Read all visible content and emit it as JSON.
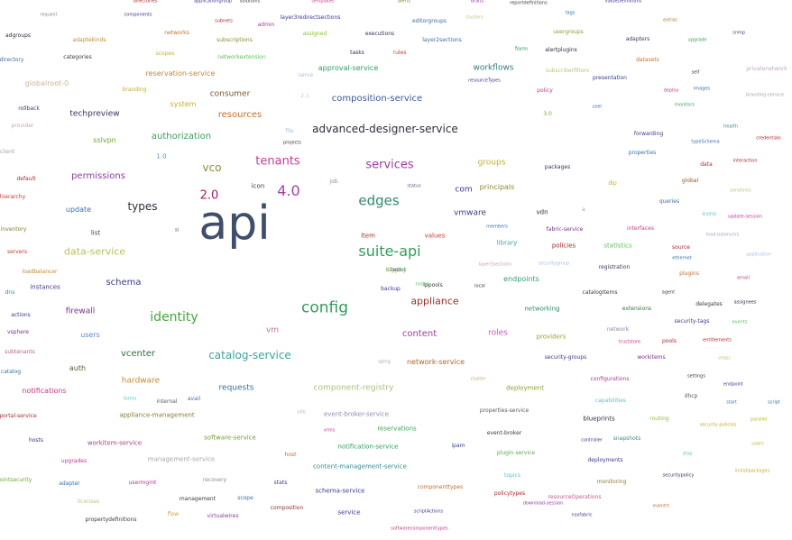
{
  "words": [
    {
      "text": "api",
      "color": "#3f4e6b"
    },
    {
      "text": "suite-api",
      "color": "#2e9e5b"
    },
    {
      "text": "config",
      "color": "#2e9e5b"
    },
    {
      "text": "edges",
      "color": "#2e8a6e"
    },
    {
      "text": "identity",
      "color": "#46a63f"
    },
    {
      "text": "services",
      "color": "#9b3fa0"
    },
    {
      "text": "tenants",
      "color": "#c2409a"
    },
    {
      "text": "4.0",
      "color": "#a63fa0"
    },
    {
      "text": "2.0",
      "color": "#a5205e"
    },
    {
      "text": "advanced-designer-service",
      "color": "#2e2e3e"
    },
    {
      "text": "catalog-service",
      "color": "#3aa6a0"
    },
    {
      "text": "vco",
      "color": "#8c8c2e"
    },
    {
      "text": "types",
      "color": "#2e2e3e"
    },
    {
      "text": "appliance",
      "color": "#a52a2a"
    },
    {
      "text": "composition-service",
      "color": "#3a5a9b"
    },
    {
      "text": "data-service",
      "color": "#b8c25a"
    },
    {
      "text": "authorization",
      "color": "#3a9e5b"
    },
    {
      "text": "resources",
      "color": "#c2702e"
    },
    {
      "text": "permissions",
      "color": "#8a3fa0"
    },
    {
      "text": "schema",
      "color": "#3a3a8a"
    },
    {
      "text": "vcenter",
      "color": "#2e6e3e"
    },
    {
      "text": "content",
      "color": "#9b3fa0"
    },
    {
      "text": "firewall",
      "color": "#7a2e8a"
    },
    {
      "text": "hardware",
      "color": "#c28a2e"
    },
    {
      "text": "requests",
      "color": "#3a6ea6"
    },
    {
      "text": "component-registry",
      "color": "#a6c27a"
    },
    {
      "text": "network-service",
      "color": "#c25a2e"
    },
    {
      "text": "roles",
      "color": "#c25ac2"
    },
    {
      "text": "vmware",
      "color": "#3a3a8a"
    },
    {
      "text": "com",
      "color": "#3a3a8a"
    },
    {
      "text": "groups",
      "color": "#c2b02e"
    },
    {
      "text": "principals",
      "color": "#8a8a2e"
    },
    {
      "text": "workflows",
      "color": "#2e7a7a"
    },
    {
      "text": "techpreview",
      "color": "#3a2e5a"
    },
    {
      "text": "consumer",
      "color": "#7a5a2e"
    },
    {
      "text": "reservation-service",
      "color": "#c28a2e"
    },
    {
      "text": "approval-service",
      "color": "#2e9e5b"
    },
    {
      "text": "sslvpn",
      "color": "#6ea62e"
    },
    {
      "text": "update",
      "color": "#3a6ea6"
    },
    {
      "text": "users",
      "color": "#5a8ac2"
    },
    {
      "text": "auth",
      "color": "#5a5a2e"
    },
    {
      "text": "vm",
      "color": "#c27a7a"
    },
    {
      "text": "endpoints",
      "color": "#2e9e6e"
    },
    {
      "text": "library",
      "color": "#3aa6a0"
    },
    {
      "text": "item",
      "color": "#a52a2a"
    },
    {
      "text": "values",
      "color": "#c23a2e"
    },
    {
      "text": "vdn",
      "color": "#2e2e3e"
    },
    {
      "text": "instances",
      "color": "#3a3a8a"
    },
    {
      "text": "appliance-management",
      "color": "#8a7a2e"
    },
    {
      "text": "event-broker-service",
      "color": "#8a8aa6"
    },
    {
      "text": "reservations",
      "color": "#3a9e5b"
    },
    {
      "text": "notification-service",
      "color": "#2e9e5b"
    },
    {
      "text": "content-management-service",
      "color": "#3a8a8a"
    },
    {
      "text": "software-service",
      "color": "#6e9e2e"
    },
    {
      "text": "management-service",
      "color": "#a6a6a6"
    },
    {
      "text": "workitem-service",
      "color": "#a63f8a"
    },
    {
      "text": "notifications",
      "color": "#c23a8a"
    },
    {
      "text": "schema-service",
      "color": "#3a3a8a"
    },
    {
      "text": "service",
      "color": "#3a3a8a"
    },
    {
      "text": "deployment",
      "color": "#8a9e2e"
    },
    {
      "text": "providers",
      "color": "#9e9e2e"
    },
    {
      "text": "networking",
      "color": "#2e8a6e"
    },
    {
      "text": "security-groups",
      "color": "#3a3a8a"
    },
    {
      "text": "policies",
      "color": "#a52a2a"
    },
    {
      "text": "statistics",
      "color": "#5ac25a"
    },
    {
      "text": "plugin-service",
      "color": "#5aa65a"
    },
    {
      "text": "properties-service",
      "color": "#5a5a5a"
    },
    {
      "text": "blueprints",
      "color": "#2e2e3e"
    },
    {
      "text": "snapshots",
      "color": "#3a8a8a"
    },
    {
      "text": "deployments",
      "color": "#3a3a8a"
    },
    {
      "text": "monitoring",
      "color": "#8a7a2e"
    },
    {
      "text": "configurations",
      "color": "#a63f8a"
    },
    {
      "text": "capabilities",
      "color": "#5ac2c2"
    },
    {
      "text": "dhcp",
      "color": "#5a5a5a"
    },
    {
      "text": "routing",
      "color": "#8ac22e"
    },
    {
      "text": "workitems",
      "color": "#7a2e8a"
    },
    {
      "text": "pools",
      "color": "#a52a2a"
    },
    {
      "text": "extensions",
      "color": "#3a6e3a"
    },
    {
      "text": "catalogItems",
      "color": "#3a3a3a"
    },
    {
      "text": "registration",
      "color": "#3a3a5a"
    },
    {
      "text": "fabric-service",
      "color": "#7a2e8a"
    },
    {
      "text": "interfaces",
      "color": "#c23a8a"
    },
    {
      "text": "plugins",
      "color": "#c2702e"
    },
    {
      "text": "source",
      "color": "#a52a2a"
    },
    {
      "text": "queries",
      "color": "#3a6ea6"
    },
    {
      "text": "icons",
      "color": "#5ac2c2"
    },
    {
      "text": "global",
      "color": "#8a5a2e"
    },
    {
      "text": "data",
      "color": "#a52a2a"
    },
    {
      "text": "packages",
      "color": "#3a2e5a"
    },
    {
      "text": "properties",
      "color": "#3a6ea6"
    },
    {
      "text": "forwarding",
      "color": "#3a3a8a"
    },
    {
      "text": "policy",
      "color": "#c23a8a"
    },
    {
      "text": "presentation",
      "color": "#3a3a8a"
    },
    {
      "text": "datasets",
      "color": "#c2702e"
    },
    {
      "text": "adapters",
      "color": "#3a3a5a"
    },
    {
      "text": "alertplugins",
      "color": "#2e2e3e"
    },
    {
      "text": "usergroups",
      "color": "#8a9e2e"
    },
    {
      "text": "form",
      "color": "#2e9e5b"
    },
    {
      "text": "layer2sections",
      "color": "#3a6ea6"
    },
    {
      "text": "executions",
      "color": "#2e2e5a"
    },
    {
      "text": "tasks",
      "color": "#2e2e5a"
    },
    {
      "text": "rules",
      "color": "#c23a2e"
    },
    {
      "text": "subscriptions",
      "color": "#8a8a2e"
    },
    {
      "text": "networkextension",
      "color": "#5ac25a"
    },
    {
      "text": "networks",
      "color": "#c2702e"
    },
    {
      "text": "assigned",
      "color": "#8ac22e"
    },
    {
      "text": "admin",
      "color": "#a63f8a"
    },
    {
      "text": "scopes",
      "color": "#c2b02e"
    },
    {
      "text": "adaptekinds",
      "color": "#c28a2e"
    },
    {
      "text": "categories",
      "color": "#3a3a3a"
    },
    {
      "text": "adgroups",
      "color": "#2e2e3e"
    },
    {
      "text": "directory",
      "color": "#3a6ea6"
    },
    {
      "text": "globalroot-0",
      "color": "#d2b48c"
    },
    {
      "text": "rollback",
      "color": "#3a3a8a"
    },
    {
      "text": "provider",
      "color": "#c2a6c2"
    },
    {
      "text": "client",
      "color": "#a6a6a6"
    },
    {
      "text": "default",
      "color": "#a52a2a"
    },
    {
      "text": "hierarchy",
      "color": "#c23a2e"
    },
    {
      "text": "inventory",
      "color": "#8a7a2e"
    },
    {
      "text": "servers",
      "color": "#c23a2e"
    },
    {
      "text": "loadbalancer",
      "color": "#c28a2e"
    },
    {
      "text": "dns",
      "color": "#3a8aa6"
    },
    {
      "text": "actions",
      "color": "#3a3a8a"
    },
    {
      "text": "vsphere",
      "color": "#7a2e8a"
    },
    {
      "text": "subtenants",
      "color": "#c25a8a"
    },
    {
      "text": "catalog",
      "color": "#3a6ea6"
    },
    {
      "text": "portal-service",
      "color": "#a52a2a"
    },
    {
      "text": "hosts",
      "color": "#3a3a8a"
    },
    {
      "text": "upgrades",
      "color": "#c23a8a"
    },
    {
      "text": "endpointsecurity",
      "color": "#6ea62e"
    },
    {
      "text": "adapter",
      "color": "#3a6ea6"
    },
    {
      "text": "usermgmt",
      "color": "#a63f8a"
    },
    {
      "text": "recovery",
      "color": "#8a8a8a"
    },
    {
      "text": "management",
      "color": "#3a3a3a"
    },
    {
      "text": "scope",
      "color": "#3a6ea6"
    },
    {
      "text": "stats",
      "color": "#3a3a8a"
    },
    {
      "text": "licenses",
      "color": "#c2c27a"
    },
    {
      "text": "propertydefinitions",
      "color": "#3a3a3a"
    },
    {
      "text": "flow",
      "color": "#c2a62e"
    },
    {
      "text": "virtualwires",
      "color": "#8a3fa0"
    },
    {
      "text": "composition",
      "color": "#8a2e3a"
    },
    {
      "text": "scriptActions",
      "color": "#3a3a8a"
    },
    {
      "text": "softwarecomponenttypes",
      "color": "#c23a8a"
    },
    {
      "text": "componenttypes",
      "color": "#c2702e"
    },
    {
      "text": "policytypes",
      "color": "#a52a2a"
    },
    {
      "text": "topics",
      "color": "#5ac2c2"
    },
    {
      "text": "event-broker",
      "color": "#3a3a3a"
    },
    {
      "text": "resourceOperations",
      "color": "#c25a8a"
    },
    {
      "text": "download-session",
      "color": "#8a3fa0"
    },
    {
      "text": "nsxfabric",
      "color": "#3a3a8a"
    },
    {
      "text": "eventrt",
      "color": "#c2702e"
    },
    {
      "text": "securitypolicy",
      "color": "#3a2e5a"
    },
    {
      "text": "installpackages",
      "color": "#c2b02e"
    },
    {
      "text": "stop",
      "color": "#5ac2c2"
    },
    {
      "text": "security-policies",
      "color": "#c2b02e"
    },
    {
      "text": "parallel",
      "color": "#c2b02e"
    },
    {
      "text": "script",
      "color": "#3a6ea6"
    },
    {
      "text": "start",
      "color": "#3a6ea6"
    },
    {
      "text": "endpoint",
      "color": "#3a3a8a"
    },
    {
      "text": "settings",
      "color": "#3a3a3a"
    },
    {
      "text": "vrops",
      "color": "#c2c27a"
    },
    {
      "text": "entitlements",
      "color": "#a52a2a"
    },
    {
      "text": "security-tags",
      "color": "#3a3a8a"
    },
    {
      "text": "events",
      "color": "#5ac25a"
    },
    {
      "text": "assignees",
      "color": "#2e2e3e"
    },
    {
      "text": "delegates",
      "color": "#3a3a3a"
    },
    {
      "text": "agent",
      "color": "#3a3a3a"
    },
    {
      "text": "network",
      "color": "#8a8aa6"
    },
    {
      "text": "truststore",
      "color": "#c23a8a"
    },
    {
      "text": "email",
      "color": "#c23a8a"
    },
    {
      "text": "application",
      "color": "#a6c2e2"
    },
    {
      "text": "ethernet",
      "color": "#3a6ea6"
    },
    {
      "text": "load-balancers",
      "color": "#a6a6c2"
    },
    {
      "text": "update-session",
      "color": "#c23a8a"
    },
    {
      "text": "sendlines",
      "color": "#c2c27a"
    },
    {
      "text": "interaction",
      "color": "#a52a2a"
    },
    {
      "text": "typeSchema",
      "color": "#3a6ea6"
    },
    {
      "text": "credentials",
      "color": "#a52a2a"
    },
    {
      "text": "health",
      "color": "#3a8a8a"
    },
    {
      "text": "monitors",
      "color": "#3a9e5b"
    },
    {
      "text": "branding-service",
      "color": "#a6a6a6"
    },
    {
      "text": "images",
      "color": "#3a6ea6"
    },
    {
      "text": "deploy",
      "color": "#c23a8a"
    },
    {
      "text": "self",
      "color": "#3a3a3a"
    },
    {
      "text": "privatenetwork",
      "color": "#c2a6c2"
    },
    {
      "text": "upgrade",
      "color": "#3a9e5b"
    },
    {
      "text": "snmp",
      "color": "#3a3a8a"
    },
    {
      "text": "extras",
      "color": "#c2702e"
    },
    {
      "text": "tags",
      "color": "#3a6ea6"
    },
    {
      "text": "valueDefinitions",
      "color": "#3a3a8a"
    },
    {
      "text": "reportdefinitions",
      "color": "#3a3a3a"
    },
    {
      "text": "drafts",
      "color": "#8a3fa0"
    },
    {
      "text": "alerts",
      "color": "#8a7a2e"
    },
    {
      "text": "templates",
      "color": "#c23a8a"
    },
    {
      "text": "solutions",
      "color": "#3a3a3a"
    },
    {
      "text": "applicationgroup",
      "color": "#3a3a8a"
    },
    {
      "text": "directories",
      "color": "#a52a2a"
    },
    {
      "text": "components",
      "color": "#3a3a8a"
    },
    {
      "text": "request",
      "color": "#8a8aa6"
    },
    {
      "text": "subnets",
      "color": "#a52a2a"
    },
    {
      "text": "layer3redirectsections",
      "color": "#3a3a8a"
    },
    {
      "text": "editorgroups",
      "color": "#3a6ea6"
    },
    {
      "text": "clusters",
      "color": "#c2c27a"
    },
    {
      "text": "user",
      "color": "#3a6ea6"
    },
    {
      "text": "3.0",
      "color": "#6ea62e"
    },
    {
      "text": "subscriberfilters",
      "color": "#c2c27a"
    },
    {
      "text": "resourceTypes",
      "color": "#3a3a8a"
    },
    {
      "text": "serve",
      "color": "#a6c2e2"
    },
    {
      "text": "2.1",
      "color": "#a6e2c2"
    },
    {
      "text": "branding",
      "color": "#c2a62e"
    },
    {
      "text": "system",
      "color": "#c2b02e"
    },
    {
      "text": "file",
      "color": "#a6c2e2"
    },
    {
      "text": "projects",
      "color": "#3a3a3a"
    },
    {
      "text": "1.0",
      "color": "#5a8ac2"
    },
    {
      "text": "icon",
      "color": "#3a3a3a"
    },
    {
      "text": "job",
      "color": "#8a8aa6"
    },
    {
      "text": "status",
      "color": "#5a5a8a"
    },
    {
      "text": "dlp",
      "color": "#c2b02e"
    },
    {
      "text": "a",
      "color": "#a6a6a6"
    },
    {
      "text": "members",
      "color": "#3a6ea6"
    },
    {
      "text": "securitygroup",
      "color": "#a6c2e2"
    },
    {
      "text": "layer3sections",
      "color": "#c2a6a6"
    },
    {
      "text": "backup",
      "color": "#3a3a8a"
    },
    {
      "text": "ippools",
      "color": "#3a3a3a"
    },
    {
      "text": "nodes",
      "color": "#5ac25a"
    },
    {
      "text": "local",
      "color": "#3a3a3a"
    },
    {
      "text": "list",
      "color": "#3a3a3a"
    },
    {
      "text": "si",
      "color": "#3a3a3a"
    },
    {
      "text": "avail",
      "color": "#3a6ea6"
    },
    {
      "text": "internal",
      "color": "#5a5a5a"
    },
    {
      "text": "forms",
      "color": "#5ac2c2"
    },
    {
      "text": "sping",
      "color": "#a6a6a6"
    },
    {
      "text": "info",
      "color": "#c2a6c2"
    },
    {
      "text": "vrms",
      "color": "#c23a8a"
    },
    {
      "text": "cluster",
      "color": "#c2a66e"
    },
    {
      "text": "host",
      "color": "#c2702e"
    },
    {
      "text": "ipam",
      "color": "#3a3a8a"
    },
    {
      "text": "controller",
      "color": "#3a3a8a"
    },
    {
      "text": "users",
      "color": "#c2b02e"
    },
    {
      "text": "logging",
      "color": "#c2b02e"
    },
    {
      "text": "test",
      "color": "#3a3a8a"
    },
    {
      "text": "current",
      "color": "#3a9e5b"
    },
    {
      "text": "flows",
      "color": "#c2c2c2"
    }
  ]
}
